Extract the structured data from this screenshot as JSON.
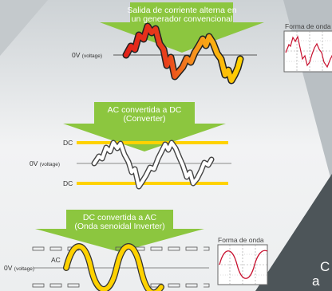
{
  "section1": {
    "banner_line1": "Salida de corriente alterna en",
    "banner_line2": "un generador convencional",
    "axis_label": "0V",
    "axis_unit": "(voltage)",
    "waveform_title": "Forma de onda"
  },
  "section2": {
    "banner_line1": "AC convertida a DC",
    "banner_line2": "(Converter)",
    "dc_top_label": "DC",
    "axis_label": "0V",
    "axis_unit": "(voltage)",
    "dc_bottom_label": "DC"
  },
  "section3": {
    "banner_line1": "DC convertida a AC",
    "banner_line2": "(Onda senoidal Inverter)",
    "ac_label": "AC",
    "axis_label": "0V",
    "axis_unit": "(voltage)",
    "waveform_title": "Forma de onda"
  },
  "corner": {
    "line1": "C",
    "line2": "a"
  },
  "colors": {
    "banner_green": "#8cc63f",
    "wave_yellow": "#ffd200",
    "wave_red": "#e32219",
    "scope_wave": "#c8102e",
    "dark_panel": "#4d5559"
  }
}
